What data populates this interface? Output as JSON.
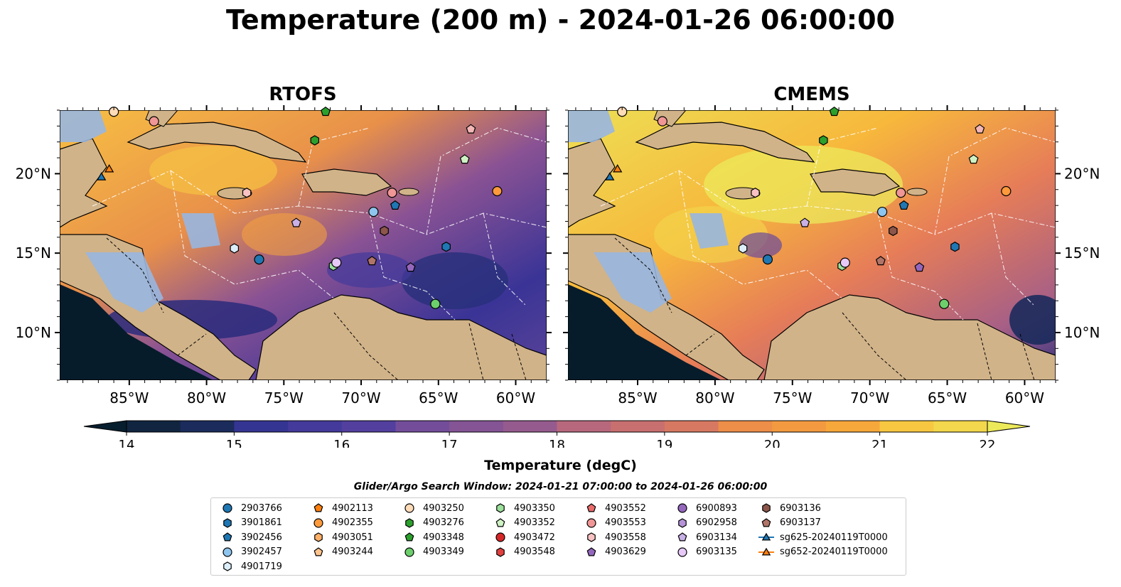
{
  "title": "Temperature (200 m) - 2024-01-26 06:00:00",
  "panels": [
    {
      "title": "RTOFS"
    },
    {
      "title": "CMEMS"
    }
  ],
  "axes": {
    "lon_ticks": [
      "85°W",
      "80°W",
      "75°W",
      "70°W",
      "65°W",
      "60°W"
    ],
    "lat_ticks": [
      "20°N",
      "15°N",
      "10°N"
    ],
    "lon_range": [
      -89.5,
      -58.0
    ],
    "lat_range": [
      7.0,
      24.0
    ]
  },
  "colorbar": {
    "label": "Temperature (degC)",
    "ticks": [
      "14",
      "15",
      "16",
      "17",
      "18",
      "19",
      "20",
      "21",
      "22"
    ],
    "range": [
      14,
      22
    ],
    "extend": "both",
    "colors": [
      "#071e2e",
      "#112540",
      "#1b2b5c",
      "#27307a",
      "#343592",
      "#433a9b",
      "#523f9e",
      "#62469d",
      "#734d9a",
      "#845495",
      "#955b8e",
      "#a66286",
      "#b8687c",
      "#c86f70",
      "#d77962",
      "#e48355",
      "#ed8e49",
      "#f39a40",
      "#f7a83b",
      "#f9b73b",
      "#f8c741",
      "#f3d74c",
      "#ecea5b"
    ]
  },
  "search_window": "Glider/Argo Search Window: 2024-01-21 07:00:00 to 2024-01-26 06:00:00",
  "legend": [
    {
      "label": "2903766",
      "marker": "circle",
      "color": "#1f77b4",
      "col": 0,
      "row": 0
    },
    {
      "label": "3901861",
      "marker": "hexagon",
      "color": "#1f77b4",
      "col": 0,
      "row": 1
    },
    {
      "label": "3902456",
      "marker": "pentagon",
      "color": "#1f77b4",
      "col": 0,
      "row": 2
    },
    {
      "label": "3902457",
      "marker": "circle",
      "color": "#8ec5ee",
      "col": 0,
      "row": 3
    },
    {
      "label": "4901719",
      "marker": "hexagon",
      "color": "#dbeefa",
      "col": 0,
      "row": 4
    },
    {
      "label": "4902113",
      "marker": "pentagon",
      "color": "#ff7f0e",
      "col": 1,
      "row": 0
    },
    {
      "label": "4902355",
      "marker": "circle",
      "color": "#ff9a3c",
      "col": 1,
      "row": 1
    },
    {
      "label": "4903051",
      "marker": "hexagon",
      "color": "#ffb067",
      "col": 1,
      "row": 2
    },
    {
      "label": "4903244",
      "marker": "pentagon",
      "color": "#ffc48e",
      "col": 1,
      "row": 3
    },
    {
      "label": "4903250",
      "marker": "circle",
      "color": "#ffdcb8",
      "col": 2,
      "row": 0
    },
    {
      "label": "4903276",
      "marker": "hexagon",
      "color": "#2ca02c",
      "col": 2,
      "row": 1
    },
    {
      "label": "4903348",
      "marker": "pentagon",
      "color": "#2ca02c",
      "col": 2,
      "row": 2
    },
    {
      "label": "4903349",
      "marker": "circle",
      "color": "#6ccf6c",
      "col": 2,
      "row": 3
    },
    {
      "label": "4903350",
      "marker": "hexagon",
      "color": "#9be09b",
      "col": 3,
      "row": 0
    },
    {
      "label": "4903352",
      "marker": "pentagon",
      "color": "#cff2c4",
      "col": 3,
      "row": 1
    },
    {
      "label": "4903472",
      "marker": "circle",
      "color": "#d62728",
      "col": 3,
      "row": 2
    },
    {
      "label": "4903548",
      "marker": "hexagon",
      "color": "#e0413f",
      "col": 3,
      "row": 3
    },
    {
      "label": "4903552",
      "marker": "pentagon",
      "color": "#ea6b6b",
      "col": 4,
      "row": 0
    },
    {
      "label": "4903553",
      "marker": "circle",
      "color": "#f09696",
      "col": 4,
      "row": 1
    },
    {
      "label": "4903558",
      "marker": "hexagon",
      "color": "#f8c2c2",
      "col": 4,
      "row": 2
    },
    {
      "label": "4903629",
      "marker": "pentagon",
      "color": "#9467bd",
      "col": 4,
      "row": 3
    },
    {
      "label": "6900893",
      "marker": "circle",
      "color": "#9467bd",
      "col": 5,
      "row": 0
    },
    {
      "label": "6902958",
      "marker": "hexagon",
      "color": "#b593d8",
      "col": 5,
      "row": 1
    },
    {
      "label": "6903134",
      "marker": "pentagon",
      "color": "#c9b0e6",
      "col": 5,
      "row": 2
    },
    {
      "label": "6903135",
      "marker": "circle",
      "color": "#e6c9f7",
      "col": 5,
      "row": 3
    },
    {
      "label": "6903136",
      "marker": "hexagon",
      "color": "#8c564b",
      "col": 6,
      "row": 0
    },
    {
      "label": "6903137",
      "marker": "pentagon",
      "color": "#b07468",
      "col": 6,
      "row": 1
    },
    {
      "label": "sg625-20240119T0000",
      "marker": "triangle-line",
      "color": "#1f77b4",
      "col": 6,
      "row": 2
    },
    {
      "label": "sg652-20240119T0000",
      "marker": "triangle-line",
      "color": "#ff7f0e",
      "col": 6,
      "row": 3
    }
  ],
  "observations": [
    {
      "marker": "circle",
      "color": "#1f77b4",
      "lon": -76.6,
      "lat": 14.6
    },
    {
      "marker": "hexagon",
      "color": "#1f77b4",
      "lon": -64.5,
      "lat": 15.4
    },
    {
      "marker": "pentagon",
      "color": "#1f77b4",
      "lon": -67.8,
      "lat": 18.0
    },
    {
      "marker": "circle",
      "color": "#8ec5ee",
      "lon": -69.2,
      "lat": 17.6
    },
    {
      "marker": "hexagon",
      "color": "#dbeefa",
      "lon": -78.2,
      "lat": 15.3
    },
    {
      "marker": "circle",
      "color": "#ff9a3c",
      "lon": -61.2,
      "lat": 18.9
    },
    {
      "marker": "circle",
      "color": "#ffdcb8",
      "lon": -86.0,
      "lat": 23.9
    },
    {
      "marker": "hexagon",
      "color": "#2ca02c",
      "lon": -73.0,
      "lat": 22.1
    },
    {
      "marker": "pentagon",
      "color": "#2ca02c",
      "lon": -72.3,
      "lat": 23.9
    },
    {
      "marker": "circle",
      "color": "#6ccf6c",
      "lon": -65.2,
      "lat": 11.8
    },
    {
      "marker": "hexagon",
      "color": "#9be09b",
      "lon": -71.8,
      "lat": 14.2
    },
    {
      "marker": "pentagon",
      "color": "#cff2c4",
      "lon": -63.3,
      "lat": 20.9
    },
    {
      "marker": "pentagon",
      "color": "#f4b6b6",
      "lon": -62.9,
      "lat": 22.8
    },
    {
      "marker": "circle",
      "color": "#f09696",
      "lon": -83.4,
      "lat": 23.3
    },
    {
      "marker": "hexagon",
      "color": "#f8c2c2",
      "lon": -77.4,
      "lat": 18.8
    },
    {
      "marker": "circle",
      "color": "#f09696",
      "lon": -68.0,
      "lat": 18.8
    },
    {
      "marker": "pentagon",
      "color": "#9467bd",
      "lon": -66.8,
      "lat": 14.1
    },
    {
      "marker": "pentagon",
      "color": "#c9b0e6",
      "lon": -74.2,
      "lat": 16.9
    },
    {
      "marker": "circle",
      "color": "#e6c9f7",
      "lon": -71.6,
      "lat": 14.4
    },
    {
      "marker": "hexagon",
      "color": "#8c564b",
      "lon": -68.5,
      "lat": 16.4
    },
    {
      "marker": "pentagon",
      "color": "#b07468",
      "lon": -69.3,
      "lat": 14.5
    },
    {
      "marker": "triangle",
      "color": "#1f77b4",
      "lon": -86.8,
      "lat": 19.8
    },
    {
      "marker": "triangle",
      "color": "#ff7f0e",
      "lon": -86.3,
      "lat": 20.3
    }
  ]
}
